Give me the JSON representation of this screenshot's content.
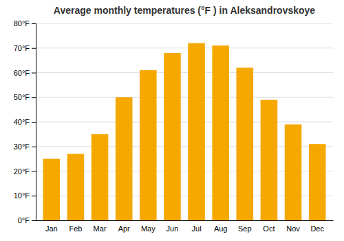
{
  "chart_data": {
    "type": "bar",
    "title": "Average monthly temperatures (°F ) in Aleksandrovskoye",
    "categories": [
      "Jan",
      "Feb",
      "Mar",
      "Apr",
      "May",
      "Jun",
      "Jul",
      "Aug",
      "Sep",
      "Oct",
      "Nov",
      "Dec"
    ],
    "values": [
      25,
      27,
      35,
      50,
      61,
      68,
      72,
      71,
      62,
      49,
      39,
      31
    ],
    "color": "#F5A800",
    "ylim": [
      0,
      80
    ],
    "yticks": [
      {
        "value": 0,
        "label": "0°F"
      },
      {
        "value": 10,
        "label": "10°F"
      },
      {
        "value": 20,
        "label": "20°F"
      },
      {
        "value": 30,
        "label": "30°F"
      },
      {
        "value": 40,
        "label": "40°F"
      },
      {
        "value": 50,
        "label": "50°F"
      },
      {
        "value": 60,
        "label": "60°F"
      },
      {
        "value": 70,
        "label": "70°F"
      },
      {
        "value": 80,
        "label": "80°F"
      }
    ],
    "grid": true
  }
}
